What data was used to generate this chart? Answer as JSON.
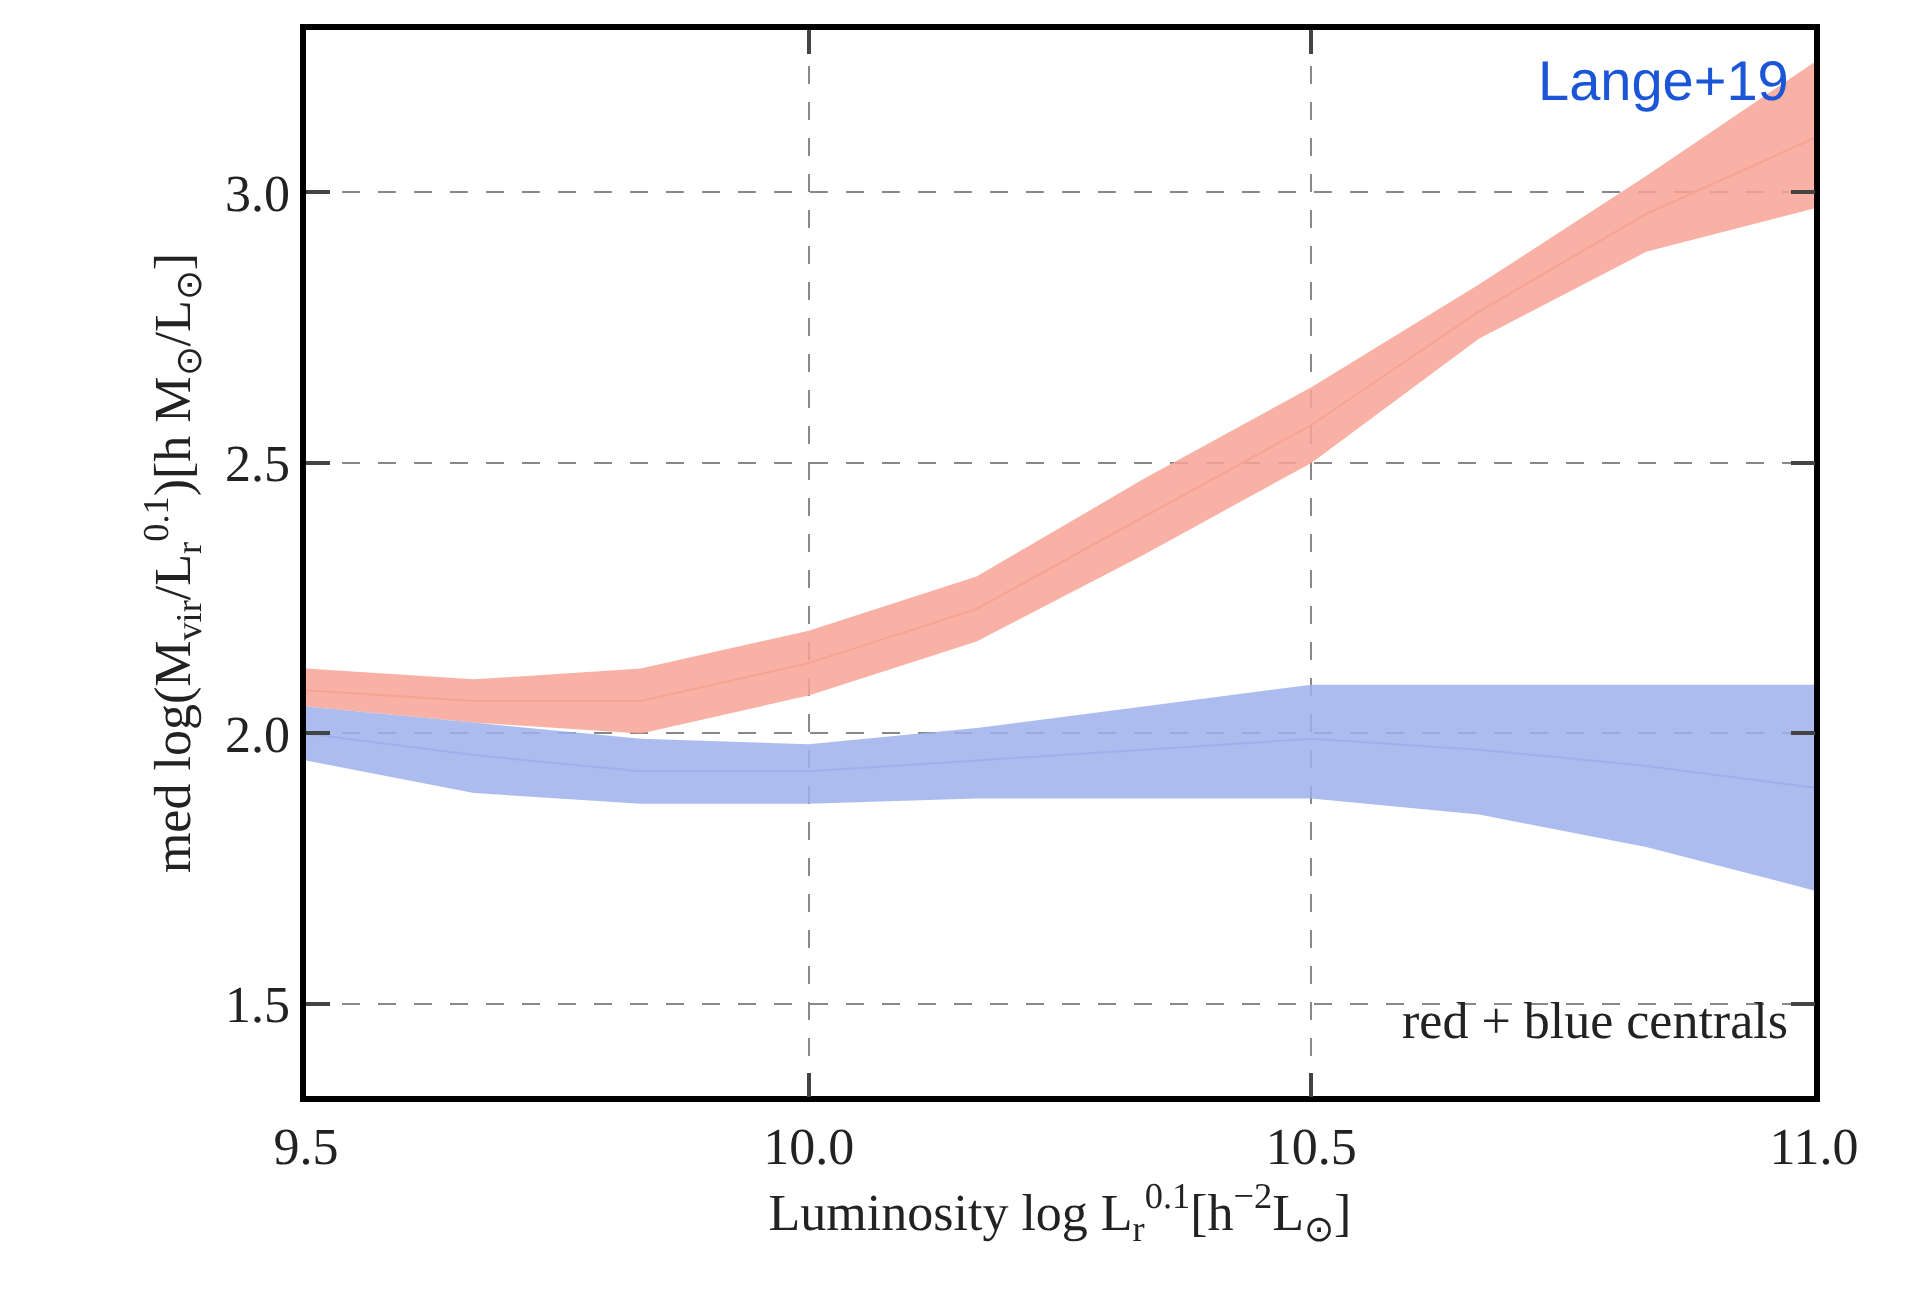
{
  "chart_data": {
    "type": "line",
    "xlabel": "Luminosity log L$_{r}$$^{0.1}$[h$^{−2}$L$_{⊙}$]",
    "ylabel": "med log(M$_{vir}$/L$_{r}$$^{0.1}$)[h M$_{⊙}$/L$_{⊙}$]",
    "x": [
      9.5,
      9.667,
      9.833,
      10.0,
      10.167,
      10.333,
      10.5,
      10.667,
      10.833,
      11.0
    ],
    "series": [
      {
        "color": "#f7a394",
        "values": [
          2.08,
          2.06,
          2.06,
          2.13,
          2.23,
          2.4,
          2.57,
          2.78,
          2.96,
          3.1
        ],
        "lower": [
          2.05,
          2.02,
          2.0,
          2.07,
          2.17,
          2.33,
          2.5,
          2.73,
          2.89,
          2.97
        ],
        "upper": [
          2.12,
          2.1,
          2.12,
          2.19,
          2.29,
          2.47,
          2.64,
          2.83,
          3.03,
          3.24
        ]
      },
      {
        "color": "#9db0ec",
        "values": [
          2.0,
          1.96,
          1.93,
          1.93,
          1.95,
          1.97,
          1.99,
          1.97,
          1.94,
          1.9
        ],
        "lower": [
          1.95,
          1.89,
          1.87,
          1.87,
          1.88,
          1.88,
          1.88,
          1.85,
          1.79,
          1.71
        ],
        "upper": [
          2.05,
          2.02,
          1.99,
          1.98,
          2.01,
          2.05,
          2.09,
          2.09,
          2.09,
          2.09
        ]
      }
    ],
    "xlim": [
      9.5,
      11.0
    ],
    "xticks": [
      9.5,
      {
        "value": 10,
        "label": "10.0"
      },
      10.5,
      {
        "value": 11,
        "label": "11.0"
      }
    ],
    "ylim": [
      1.33,
      3.3
    ],
    "yticks": [
      1.5,
      {
        "value": 2,
        "label": "2.0"
      },
      2.5,
      {
        "value": 3,
        "label": "3.0"
      }
    ],
    "grid": true,
    "annotations": [
      "Lange+19",
      "red + blue centrals"
    ]
  }
}
